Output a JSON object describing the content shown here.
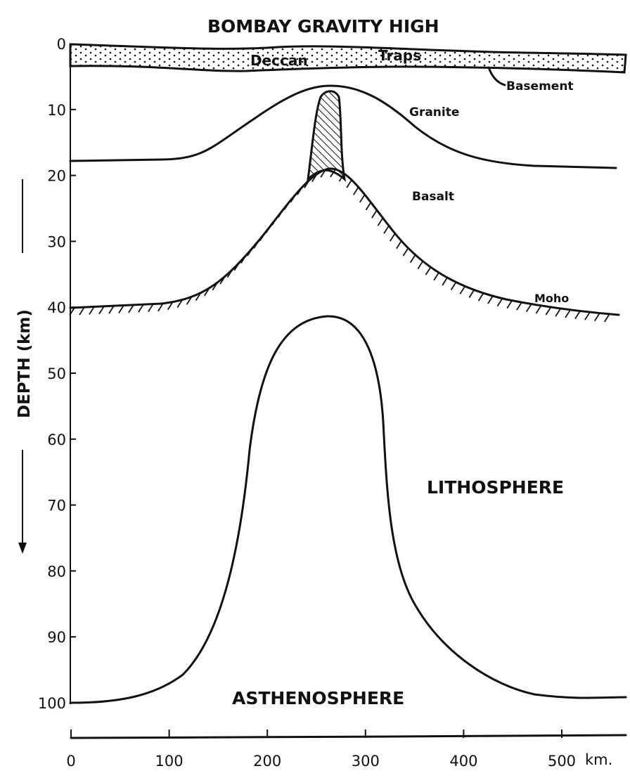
{
  "title": "BOMBAY GRAVITY HIGH",
  "y_axis": {
    "label": "DEPTH (km)",
    "ticks": [
      "0",
      "10",
      "20",
      "30",
      "40",
      "50",
      "60",
      "70",
      "80",
      "90",
      "100"
    ]
  },
  "x_axis": {
    "ticks": [
      "0",
      "100",
      "200",
      "300",
      "400",
      "500"
    ],
    "unit": "km."
  },
  "labels": {
    "deccan": "Deccan",
    "traps": "Traps",
    "basement": "Basement",
    "granite": "Granite",
    "basalt": "Basalt",
    "moho": "Moho",
    "lithosphere": "LITHOSPHERE",
    "asthenosphere": "ASTHENOSPHERE"
  },
  "colors": {
    "ink": "#111111",
    "paper": "#ffffff"
  }
}
